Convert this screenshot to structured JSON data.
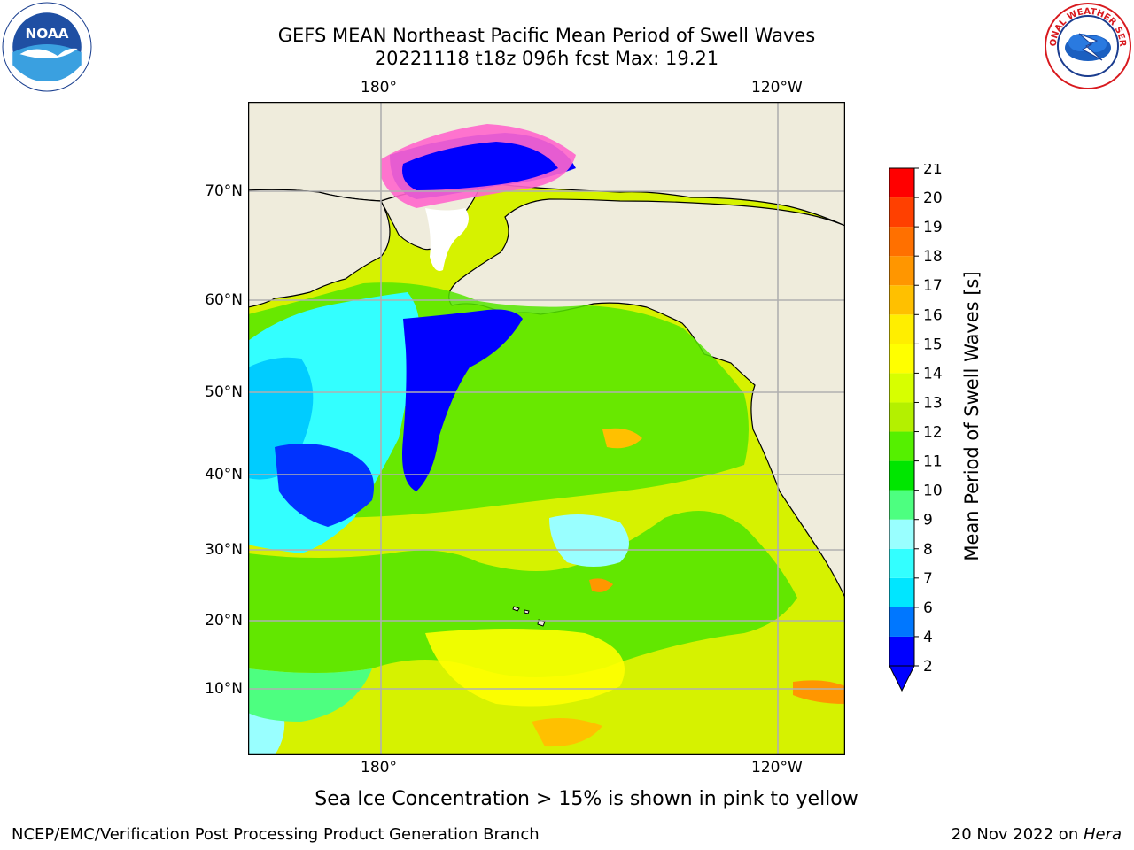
{
  "header": {
    "title_line1": "GEFS MEAN Northeast Pacific Mean Period of Swell Waves",
    "title_line2": "20221118 t18z 096h fcst   Max: 19.21"
  },
  "logos": {
    "left": {
      "icon": "noaa-logo",
      "text": "NOAA",
      "ring_text": "NATIONAL OCEANIC AND ATMOSPHERIC ADMINISTRATION · U.S. DEPARTMENT OF COMMERCE"
    },
    "right": {
      "icon": "nws-logo",
      "ring_text": "NATIONAL WEATHER SERVICE"
    }
  },
  "map": {
    "lat_ticks": [
      "70°N",
      "60°N",
      "50°N",
      "40°N",
      "30°N",
      "20°N",
      "10°N"
    ],
    "lon_ticks": [
      "180°",
      "120°W"
    ],
    "colors": {
      "land": "#efecdc",
      "ocean_default": "#d6f200",
      "grid": "#b0b0b0",
      "coast": "#000000"
    }
  },
  "colorbar": {
    "title": "Mean Period of Swell Waves [s]",
    "tick_labels": [
      "2",
      "4",
      "6",
      "7",
      "8",
      "9",
      "10",
      "11",
      "12",
      "13",
      "14",
      "15",
      "16",
      "17",
      "18",
      "19",
      "20",
      "21"
    ],
    "colors": [
      "#0000ff",
      "#0077ff",
      "#00e6ff",
      "#33ffff",
      "#99ffff",
      "#4dff80",
      "#00e600",
      "#55f000",
      "#b4f000",
      "#d7ff00",
      "#ffff00",
      "#ffee00",
      "#ffc000",
      "#ff9600",
      "#ff7000",
      "#ff4000",
      "#ff0000"
    ],
    "extend": "min"
  },
  "notes": {
    "sea_ice": "Sea Ice Concentration > 15% is shown in pink to yellow"
  },
  "footer": {
    "left": "NCEP/EMC/Verification Post Processing Product Generation Branch",
    "right_date": "20 Nov 2022 on ",
    "right_host": "Hera"
  }
}
